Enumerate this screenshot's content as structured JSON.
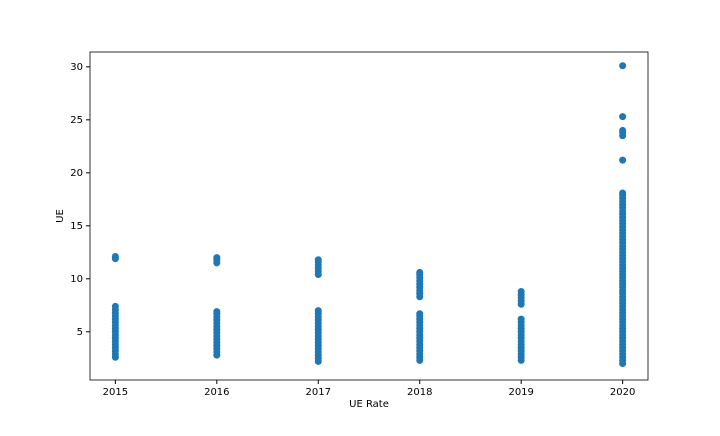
{
  "chart_data": {
    "type": "scatter",
    "xlabel": "UE Rate",
    "ylabel": "UE",
    "color": "#1f77b4",
    "xlim": [
      2014.75,
      2020.25
    ],
    "xticks": [
      2015,
      2016,
      2017,
      2018,
      2019,
      2020
    ],
    "ylim": [
      0.45,
      31.4
    ],
    "yticks": [
      5,
      10,
      15,
      20,
      25,
      30
    ],
    "x": [
      2015,
      2015,
      2015,
      2015,
      2015,
      2015,
      2015,
      2015,
      2015,
      2015,
      2015,
      2015,
      2015,
      2015,
      2015,
      2015,
      2015,
      2015,
      2015,
      2016,
      2016,
      2016,
      2016,
      2016,
      2016,
      2016,
      2016,
      2016,
      2016,
      2016,
      2016,
      2016,
      2016,
      2016,
      2016,
      2016,
      2016,
      2017,
      2017,
      2017,
      2017,
      2017,
      2017,
      2017,
      2017,
      2017,
      2017,
      2017,
      2017,
      2017,
      2017,
      2017,
      2017,
      2017,
      2017,
      2017,
      2017,
      2017,
      2017,
      2017,
      2018,
      2018,
      2018,
      2018,
      2018,
      2018,
      2018,
      2018,
      2018,
      2018,
      2018,
      2018,
      2018,
      2018,
      2018,
      2018,
      2018,
      2018,
      2018,
      2018,
      2018,
      2018,
      2018,
      2018,
      2018,
      2019,
      2019,
      2019,
      2019,
      2019,
      2019,
      2019,
      2019,
      2019,
      2019,
      2019,
      2019,
      2019,
      2019,
      2019,
      2019,
      2019,
      2019,
      2019,
      2020,
      2020,
      2020,
      2020,
      2020,
      2020,
      2020,
      2020,
      2020,
      2020,
      2020,
      2020,
      2020,
      2020,
      2020,
      2020,
      2020,
      2020,
      2020,
      2020,
      2020,
      2020,
      2020,
      2020,
      2020,
      2020,
      2020,
      2020,
      2020,
      2020,
      2020,
      2020,
      2020,
      2020,
      2020,
      2020,
      2020,
      2020,
      2020,
      2020,
      2020,
      2020,
      2020,
      2020,
      2020,
      2020,
      2020,
      2020,
      2020,
      2020,
      2020,
      2020,
      2020,
      2020,
      2020,
      2020,
      2020,
      2020,
      2020,
      2020,
      2020
    ],
    "values": [
      2.6,
      2.9,
      3.2,
      3.5,
      3.8,
      4.1,
      4.4,
      4.7,
      5.0,
      5.3,
      5.6,
      5.9,
      6.2,
      6.5,
      6.8,
      7.1,
      7.4,
      11.9,
      12.1,
      2.8,
      3.1,
      3.4,
      3.7,
      4.0,
      4.3,
      4.6,
      4.9,
      5.2,
      5.5,
      5.8,
      6.1,
      6.4,
      6.7,
      6.9,
      11.5,
      11.8,
      12.0,
      2.2,
      2.5,
      2.8,
      3.1,
      3.4,
      3.7,
      4.0,
      4.3,
      4.6,
      4.9,
      5.2,
      5.5,
      5.8,
      6.1,
      6.4,
      6.7,
      7.0,
      10.4,
      10.7,
      11.0,
      11.3,
      11.6,
      11.8,
      2.3,
      2.6,
      2.9,
      3.2,
      3.5,
      3.8,
      4.1,
      4.4,
      4.7,
      5.0,
      5.3,
      5.6,
      5.9,
      6.2,
      6.5,
      6.7,
      8.3,
      8.6,
      8.9,
      9.2,
      9.5,
      9.8,
      10.1,
      10.4,
      10.6,
      2.3,
      2.6,
      2.9,
      3.2,
      3.5,
      3.8,
      4.1,
      4.4,
      4.7,
      5.0,
      5.3,
      5.6,
      5.9,
      6.2,
      7.6,
      7.9,
      8.2,
      8.5,
      8.8,
      2.0,
      2.3,
      2.6,
      2.9,
      3.2,
      3.5,
      3.8,
      4.1,
      4.4,
      4.7,
      5.0,
      5.3,
      5.6,
      5.9,
      6.2,
      6.5,
      6.8,
      7.1,
      7.4,
      7.7,
      8.0,
      8.3,
      8.6,
      8.9,
      9.2,
      9.5,
      9.8,
      10.1,
      10.4,
      10.7,
      11.0,
      11.3,
      11.6,
      11.9,
      12.2,
      12.5,
      12.8,
      13.1,
      13.4,
      13.7,
      14.0,
      14.3,
      14.6,
      14.9,
      15.2,
      15.5,
      15.8,
      16.1,
      16.4,
      16.7,
      17.0,
      17.3,
      17.6,
      17.9,
      18.1,
      21.2,
      23.5,
      23.8,
      24.0,
      25.3,
      30.1
    ]
  }
}
